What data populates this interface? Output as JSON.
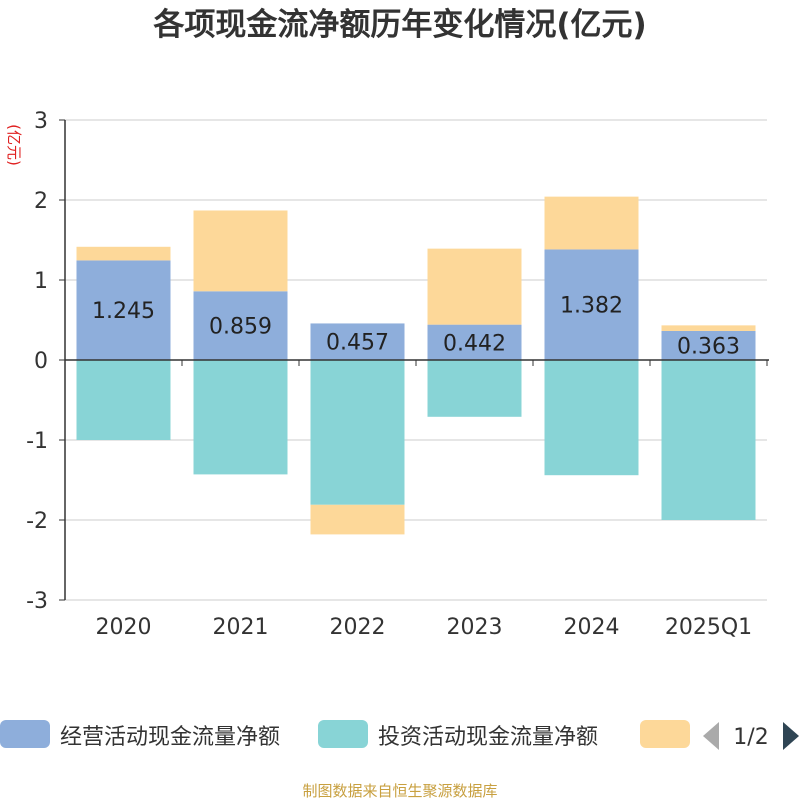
{
  "title": "各项现金流净额历年变化情况(亿元)",
  "footer": "制图数据来自恒生聚源数据库",
  "pager": {
    "text": "1/2"
  },
  "chart_data": {
    "type": "bar",
    "stacked": true,
    "categories": [
      "2020",
      "2021",
      "2022",
      "2023",
      "2024",
      "2025Q1"
    ],
    "ylabel": "(亿元)",
    "ylim": [
      -3,
      3
    ],
    "yticks": [
      3,
      2,
      1,
      0,
      -1,
      -2,
      -3
    ],
    "grid": true,
    "legend_position": "bottom",
    "series": [
      {
        "name": "经营活动现金流量净额",
        "color": "#8eaedb",
        "values": [
          1.245,
          0.859,
          0.457,
          0.442,
          1.382,
          0.363
        ],
        "labels": [
          "1.245",
          "0.859",
          "0.457",
          "0.442",
          "1.382",
          "0.363"
        ]
      },
      {
        "name": "投资活动现金流量净额",
        "color": "#88d4d6",
        "values": [
          -1.0,
          -1.43,
          -1.81,
          -0.71,
          -1.44,
          -2.0
        ]
      },
      {
        "name": "",
        "color": "#fdd899",
        "values": [
          0.17,
          1.01,
          -0.37,
          0.95,
          0.66,
          0.07
        ]
      }
    ]
  }
}
